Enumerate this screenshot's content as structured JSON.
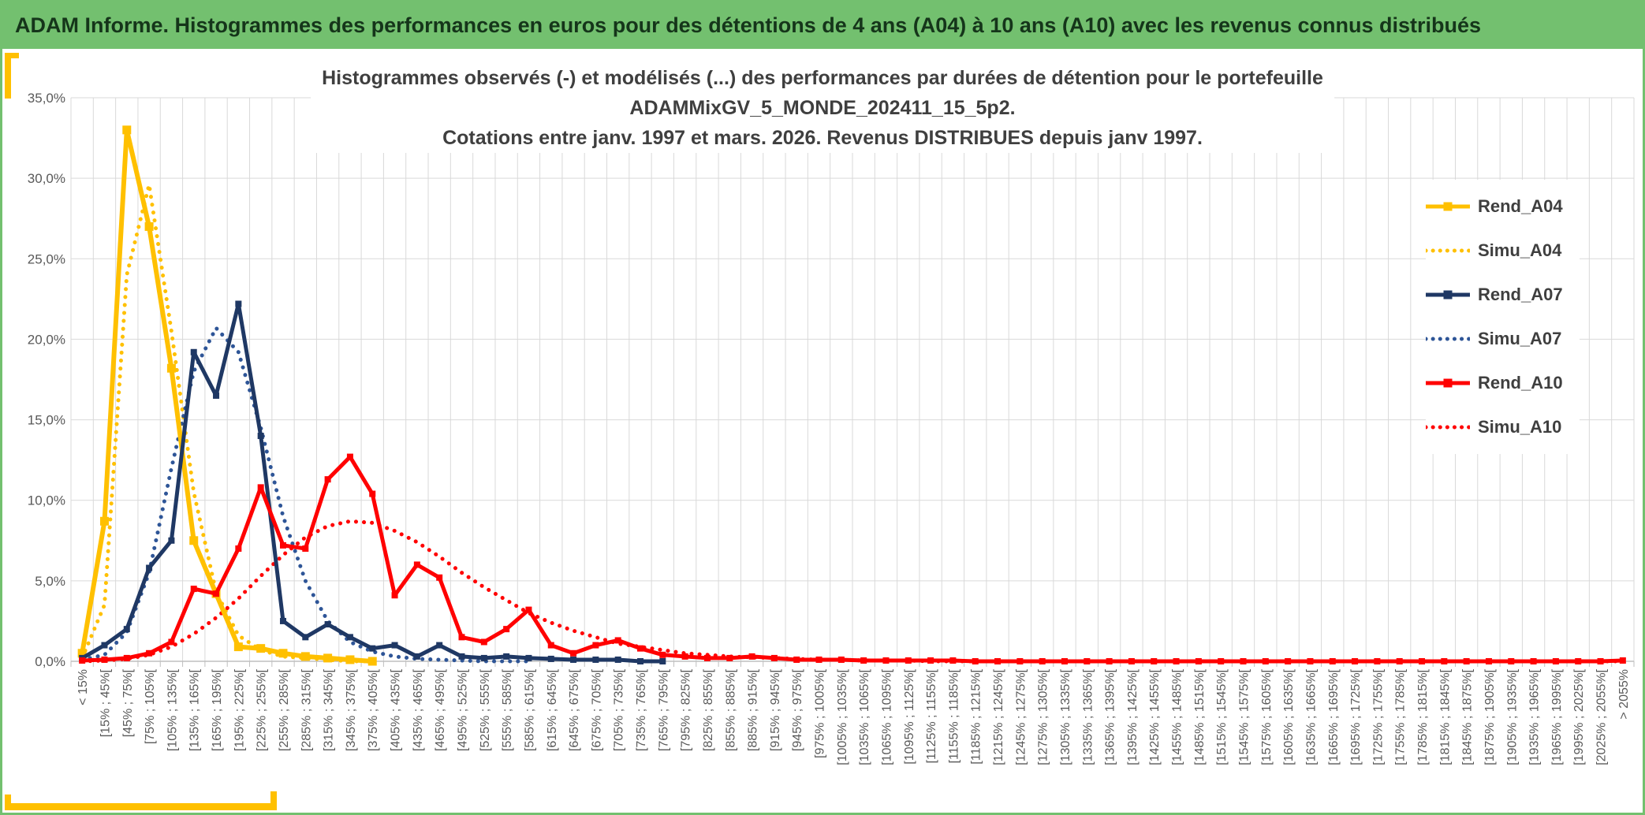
{
  "header": {
    "title": "ADAM Informe. Histogrammes des performances en euros pour des détentions de 4 ans (A04) à 10 ans (A10) avec les revenus connus distribués"
  },
  "colors": {
    "header_green": "#73C06F",
    "header_text": "#15351A",
    "accent_gold": "#FFC000",
    "title_text": "#3F3F3F",
    "axis_text": "#595959",
    "grid_line": "#D9D9D9",
    "axis_line": "#BFBFBF",
    "series_gold": "#FFC000",
    "series_navy": "#1F3864",
    "series_blue_dotted": "#2E5597",
    "series_red": "#FF0000"
  },
  "chart_data": {
    "type": "line",
    "title_lines": [
      "Histogrammes observés (-) et modélisés (...) des performances par durées de détention pour le portefeuille",
      "ADAMMixGV_5_MONDE_202411_15_5p2.",
      "Cotations entre janv. 1997 et mars. 2026. Revenus DISTRIBUES depuis janv 1997."
    ],
    "xlabel": "",
    "ylabel": "",
    "ylim": [
      0,
      35
    ],
    "y_tick_step": 5,
    "y_tick_labels": [
      "0,0%",
      "5,0%",
      "10,0%",
      "15,0%",
      "20,0%",
      "25,0%",
      "30,0%",
      "35,0%"
    ],
    "grid": true,
    "legend_position": "right-inside",
    "categories": [
      "< 15%",
      "[15% ; 45%[",
      "[45% ; 75%[",
      "[75% ; 105%[",
      "[105% ; 135%[",
      "[135% ; 165%[",
      "[165% ; 195%[",
      "[195% ; 225%[",
      "[225% ; 255%[",
      "[255% ; 285%[",
      "[285% ; 315%[",
      "[315% ; 345%[",
      "[345% ; 375%[",
      "[375% ; 405%[",
      "[405% ; 435%[",
      "[435% ; 465%[",
      "[465% ; 495%[",
      "[495% ; 525%[",
      "[525% ; 555%[",
      "[555% ; 585%[",
      "[585% ; 615%[",
      "[615% ; 645%[",
      "[645% ; 675%[",
      "[675% ; 705%[",
      "[705% ; 735%[",
      "[735% ; 765%[",
      "[765% ; 795%[",
      "[795% ; 825%[",
      "[825% ; 855%[",
      "[855% ; 885%[",
      "[885% ; 915%[",
      "[915% ; 945%[",
      "[945% ; 975%[",
      "[975% ; 1005%[",
      "[1005% ; 1035%[",
      "[1035% ; 1065%[",
      "[1065% ; 1095%[",
      "[1095% ; 1125%[",
      "[1125% ; 1155%[",
      "[1155% ; 1185%[",
      "[1185% ; 1215%[",
      "[1215% ; 1245%[",
      "[1245% ; 1275%[",
      "[1275% ; 1305%[",
      "[1305% ; 1335%[",
      "[1335% ; 1365%[",
      "[1365% ; 1395%[",
      "[1395% ; 1425%[",
      "[1425% ; 1455%[",
      "[1455% ; 1485%[",
      "[1485% ; 1515%[",
      "[1515% ; 1545%[",
      "[1545% ; 1575%[",
      "[1575% ; 1605%[",
      "[1605% ; 1635%[",
      "[1635% ; 1665%[",
      "[1665% ; 1695%[",
      "[1695% ; 1725%[",
      "[1725% ; 1755%[",
      "[1755% ; 1785%[",
      "[1785% ; 1815%[",
      "[1815% ; 1845%[",
      "[1845% ; 1875%[",
      "[1875% ; 1905%[",
      "[1905% ; 1935%[",
      "[1935% ; 1965%[",
      "[1965% ; 1995%[",
      "[1995% ; 2025%[",
      "[2025% ; 2055%[",
      "> 2055%"
    ],
    "series": [
      {
        "name": "Rend_A04",
        "color": "#FFC000",
        "style": "solid",
        "marker": true,
        "width": 6,
        "marker_size": 11,
        "values": [
          0.5,
          8.7,
          33.0,
          27.0,
          18.2,
          7.5,
          4.2,
          0.9,
          0.8,
          0.5,
          0.3,
          0.2,
          0.1,
          0.0
        ]
      },
      {
        "name": "Simu_A04",
        "color": "#FFC000",
        "style": "dotted",
        "marker": false,
        "width": 5,
        "marker_size": 0,
        "values": [
          0.2,
          3.5,
          24.0,
          29.6,
          20.5,
          10.5,
          4.3,
          1.6,
          0.7,
          0.3,
          0.2,
          0.1,
          0.0,
          0.0
        ]
      },
      {
        "name": "Rend_A07",
        "color": "#1F3864",
        "style": "solid",
        "marker": true,
        "width": 5,
        "marker_size": 8,
        "values": [
          0.2,
          1.0,
          2.0,
          5.8,
          7.5,
          19.2,
          16.5,
          22.2,
          14.0,
          2.5,
          1.5,
          2.3,
          1.5,
          0.8,
          1.0,
          0.3,
          1.0,
          0.3,
          0.2,
          0.3,
          0.2,
          0.15,
          0.1,
          0.1,
          0.1,
          0.0,
          0.0
        ]
      },
      {
        "name": "Simu_A07",
        "color": "#2E5597",
        "style": "dotted",
        "marker": false,
        "width": 5,
        "marker_size": 0,
        "values": [
          0.1,
          0.4,
          1.8,
          5.5,
          12.0,
          18.0,
          20.7,
          19.2,
          14.5,
          9.0,
          5.0,
          2.5,
          1.2,
          0.6,
          0.3,
          0.15,
          0.1,
          0.05,
          0.0,
          0.0,
          0.0
        ]
      },
      {
        "name": "Rend_A10",
        "color": "#FF0000",
        "style": "solid",
        "marker": true,
        "width": 5,
        "marker_size": 8,
        "values": [
          0.05,
          0.1,
          0.2,
          0.5,
          1.2,
          4.5,
          4.2,
          7.0,
          10.8,
          7.2,
          7.0,
          11.3,
          12.7,
          10.4,
          4.1,
          6.0,
          5.2,
          1.5,
          1.2,
          2.0,
          3.2,
          1.0,
          0.5,
          1.0,
          1.3,
          0.8,
          0.4,
          0.3,
          0.2,
          0.2,
          0.3,
          0.2,
          0.1,
          0.1,
          0.1,
          0.05,
          0.05,
          0.05,
          0.05,
          0.05,
          0.0,
          0.0,
          0.0,
          0.0,
          0.0,
          0.0,
          0.0,
          0.0,
          0.0,
          0.0,
          0.0,
          0.0,
          0.0,
          0.0,
          0.0,
          0.0,
          0.0,
          0.0,
          0.0,
          0.0,
          0.0,
          0.0,
          0.0,
          0.0,
          0.0,
          0.0,
          0.0,
          0.0,
          0.0,
          0.05
        ]
      },
      {
        "name": "Simu_A10",
        "color": "#FF0000",
        "style": "dotted",
        "marker": false,
        "width": 5,
        "marker_size": 0,
        "values": [
          0.0,
          0.05,
          0.15,
          0.4,
          0.9,
          1.7,
          2.7,
          3.9,
          5.3,
          6.6,
          7.7,
          8.4,
          8.7,
          8.6,
          8.1,
          7.4,
          6.5,
          5.5,
          4.6,
          3.8,
          3.0,
          2.4,
          1.9,
          1.5,
          1.1,
          0.9,
          0.7,
          0.5,
          0.4,
          0.3,
          0.25,
          0.2,
          0.15,
          0.1,
          0.1,
          0.05,
          0.05,
          0.05,
          0.0,
          0.0,
          0.0,
          0.0,
          0.0,
          0.0,
          0.0,
          0.0,
          0.0,
          0.0,
          0.0,
          0.0,
          0.0,
          0.0,
          0.0,
          0.0,
          0.0,
          0.0,
          0.0,
          0.0,
          0.0,
          0.0,
          0.0,
          0.0,
          0.0,
          0.0,
          0.0,
          0.0,
          0.0,
          0.0,
          0.0,
          0.0
        ]
      }
    ]
  }
}
